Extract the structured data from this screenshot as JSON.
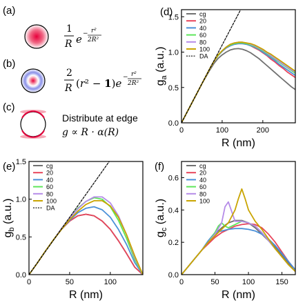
{
  "panels": {
    "a": {
      "label": "(a)"
    },
    "b": {
      "label": "(b)"
    },
    "c": {
      "label": "(c)",
      "text1": "Distribute at edge",
      "text2": "g ∝ R · α(R)"
    }
  },
  "colors": {
    "cg": "#707070",
    "20": "#e8455b",
    "40": "#4a90d9",
    "60": "#5ee65a",
    "80": "#b58be8",
    "100": "#c9a400",
    "DA": "#000000"
  },
  "chart_data": [
    {
      "panel": "(d)",
      "type": "line",
      "xlabel": "R (nm)",
      "ylabel": "g_a (a.u.)",
      "xlim": [
        0,
        280
      ],
      "ylim": [
        0,
        1.6
      ],
      "xticks": [
        0,
        100,
        200
      ],
      "yticks": [
        0.0,
        0.5,
        1.0,
        1.5
      ],
      "legend_position": "top-left",
      "series": [
        {
          "name": "cg",
          "x": [
            0,
            10,
            20,
            30,
            40,
            50,
            60,
            70,
            80,
            90,
            100,
            110,
            120,
            130,
            140,
            150,
            160,
            170,
            180,
            190,
            200,
            210,
            220,
            230,
            240,
            250,
            260,
            270,
            280
          ],
          "y": [
            0,
            0.11,
            0.22,
            0.33,
            0.44,
            0.55,
            0.65,
            0.75,
            0.84,
            0.91,
            0.96,
            1.0,
            1.03,
            1.045,
            1.05,
            1.04,
            1.02,
            0.99,
            0.95,
            0.91,
            0.86,
            0.81,
            0.76,
            0.71,
            0.66,
            0.61,
            0.56,
            0.51,
            0.47
          ]
        },
        {
          "name": "20",
          "x": [
            0,
            10,
            20,
            30,
            40,
            50,
            60,
            70,
            80,
            90,
            100,
            110,
            120,
            130,
            140,
            150,
            160,
            170,
            180,
            190,
            200,
            210,
            220,
            230,
            240,
            250,
            260,
            270,
            280
          ],
          "y": [
            0,
            0.11,
            0.22,
            0.33,
            0.44,
            0.55,
            0.66,
            0.77,
            0.87,
            0.95,
            1.01,
            1.06,
            1.09,
            1.11,
            1.12,
            1.12,
            1.11,
            1.09,
            1.06,
            1.03,
            0.99,
            0.95,
            0.9,
            0.86,
            0.81,
            0.77,
            0.72,
            0.68,
            0.64
          ]
        },
        {
          "name": "40",
          "x": [
            0,
            10,
            20,
            30,
            40,
            50,
            60,
            70,
            80,
            90,
            100,
            110,
            120,
            130,
            140,
            150,
            160,
            170,
            180,
            190,
            200,
            210,
            220,
            230,
            240,
            250,
            260,
            270,
            280
          ],
          "y": [
            0,
            0.11,
            0.22,
            0.33,
            0.44,
            0.55,
            0.66,
            0.77,
            0.87,
            0.95,
            1.01,
            1.06,
            1.09,
            1.11,
            1.12,
            1.12,
            1.11,
            1.09,
            1.07,
            1.04,
            1.0,
            0.96,
            0.92,
            0.88,
            0.83,
            0.79,
            0.75,
            0.71,
            0.67
          ]
        },
        {
          "name": "60",
          "x": [
            0,
            10,
            20,
            30,
            40,
            50,
            60,
            70,
            80,
            90,
            100,
            110,
            120,
            130,
            140,
            150,
            160,
            170,
            180,
            190,
            200,
            210,
            220,
            230,
            240,
            250,
            260,
            270,
            280
          ],
          "y": [
            0,
            0.11,
            0.22,
            0.33,
            0.44,
            0.55,
            0.66,
            0.77,
            0.87,
            0.95,
            1.02,
            1.07,
            1.1,
            1.12,
            1.13,
            1.13,
            1.12,
            1.1,
            1.08,
            1.05,
            1.02,
            0.98,
            0.94,
            0.9,
            0.86,
            0.82,
            0.78,
            0.74,
            0.7
          ]
        },
        {
          "name": "80",
          "x": [
            0,
            10,
            20,
            30,
            40,
            50,
            60,
            70,
            80,
            90,
            100,
            110,
            120,
            130,
            140,
            150,
            160,
            170,
            180,
            190,
            200,
            210,
            220,
            230,
            240,
            250,
            260,
            270,
            280
          ],
          "y": [
            0,
            0.11,
            0.22,
            0.33,
            0.44,
            0.55,
            0.66,
            0.77,
            0.87,
            0.96,
            1.02,
            1.07,
            1.11,
            1.13,
            1.14,
            1.14,
            1.13,
            1.11,
            1.09,
            1.06,
            1.03,
            0.99,
            0.95,
            0.91,
            0.87,
            0.83,
            0.79,
            0.75,
            0.72
          ]
        },
        {
          "name": "100",
          "x": [
            0,
            10,
            20,
            30,
            40,
            50,
            60,
            70,
            80,
            90,
            100,
            110,
            120,
            130,
            140,
            150,
            160,
            170,
            180,
            190,
            200,
            210,
            220,
            230,
            240,
            250,
            260,
            270,
            280
          ],
          "y": [
            0,
            0.11,
            0.22,
            0.33,
            0.44,
            0.55,
            0.66,
            0.77,
            0.87,
            0.96,
            1.02,
            1.07,
            1.11,
            1.13,
            1.14,
            1.14,
            1.13,
            1.12,
            1.1,
            1.07,
            1.04,
            1.0,
            0.97,
            0.93,
            0.89,
            0.85,
            0.81,
            0.77,
            0.73
          ]
        },
        {
          "name": "DA",
          "dashed": true,
          "x": [
            0,
            150
          ],
          "y": [
            0,
            1.65
          ]
        }
      ]
    },
    {
      "panel": "(e)",
      "type": "line",
      "xlabel": "R (nm)",
      "ylabel": "g_b (a.u.)",
      "xlim": [
        0,
        140
      ],
      "ylim": [
        0,
        1.5
      ],
      "xticks": [
        0,
        50,
        100
      ],
      "yticks": [
        0.0,
        0.5,
        1.0,
        1.5
      ],
      "legend_position": "top-left",
      "series": [
        {
          "name": "cg",
          "x": [
            0,
            10,
            20,
            30,
            40,
            50,
            60,
            70,
            80,
            90,
            100,
            110,
            120,
            130,
            140
          ],
          "y": [
            0,
            0.15,
            0.31,
            0.46,
            0.6,
            0.71,
            0.78,
            0.8,
            0.78,
            0.71,
            0.6,
            0.45,
            0.28,
            0.1,
            0
          ]
        },
        {
          "name": "20",
          "x": [
            0,
            10,
            20,
            30,
            40,
            50,
            60,
            70,
            80,
            90,
            100,
            110,
            120,
            130,
            140
          ],
          "y": [
            0,
            0.15,
            0.31,
            0.46,
            0.6,
            0.71,
            0.78,
            0.8,
            0.78,
            0.71,
            0.6,
            0.45,
            0.28,
            0.1,
            0
          ]
        },
        {
          "name": "40",
          "x": [
            0,
            10,
            20,
            30,
            40,
            50,
            60,
            70,
            80,
            90,
            100,
            110,
            120,
            130,
            140
          ],
          "y": [
            0,
            0.15,
            0.31,
            0.46,
            0.6,
            0.72,
            0.82,
            0.88,
            0.9,
            0.86,
            0.76,
            0.6,
            0.4,
            0.16,
            0
          ]
        },
        {
          "name": "60",
          "x": [
            0,
            10,
            20,
            30,
            40,
            50,
            60,
            70,
            80,
            90,
            100,
            110,
            120,
            130,
            140
          ],
          "y": [
            0,
            0.15,
            0.31,
            0.46,
            0.61,
            0.75,
            0.88,
            0.97,
            1.02,
            1.0,
            0.9,
            0.72,
            0.48,
            0.2,
            0
          ]
        },
        {
          "name": "80",
          "x": [
            0,
            10,
            20,
            30,
            40,
            50,
            60,
            70,
            80,
            90,
            100,
            110,
            120,
            130,
            140
          ],
          "y": [
            0,
            0.15,
            0.31,
            0.46,
            0.61,
            0.75,
            0.87,
            0.97,
            1.03,
            1.03,
            0.95,
            0.78,
            0.53,
            0.23,
            0
          ]
        },
        {
          "name": "100",
          "x": [
            0,
            10,
            20,
            30,
            40,
            50,
            60,
            70,
            80,
            90,
            100,
            110,
            120,
            130,
            140
          ],
          "y": [
            0,
            0.15,
            0.31,
            0.46,
            0.6,
            0.73,
            0.84,
            0.93,
            0.98,
            0.98,
            0.91,
            0.76,
            0.53,
            0.25,
            0
          ]
        },
        {
          "name": "DA",
          "dashed": true,
          "x": [
            0,
            100
          ],
          "y": [
            0,
            1.52
          ]
        }
      ]
    },
    {
      "panel": "(f)",
      "type": "line",
      "xlabel": "R (nm)",
      "ylabel": "g_c (a.u.)",
      "xlim": [
        0,
        170
      ],
      "ylim": [
        0,
        0.7
      ],
      "xticks": [
        0,
        50,
        100,
        150
      ],
      "yticks": [
        0.0,
        0.2,
        0.4,
        0.6
      ],
      "legend_position": "top-left",
      "series": [
        {
          "name": "cg",
          "x": [
            0,
            10,
            20,
            30,
            40,
            50,
            60,
            70,
            80,
            90,
            100,
            110,
            120,
            130,
            140,
            150,
            160,
            170
          ],
          "y": [
            0,
            0.05,
            0.1,
            0.15,
            0.2,
            0.25,
            0.29,
            0.32,
            0.335,
            0.335,
            0.32,
            0.29,
            0.25,
            0.21,
            0.17,
            0.12,
            0.07,
            0.03
          ]
        },
        {
          "name": "20",
          "x": [
            0,
            10,
            20,
            30,
            40,
            50,
            60,
            70,
            80,
            90,
            100,
            110,
            120,
            130,
            140,
            150,
            160,
            170
          ],
          "y": [
            0,
            0.05,
            0.1,
            0.15,
            0.19,
            0.23,
            0.26,
            0.28,
            0.3,
            0.31,
            0.315,
            0.31,
            0.29,
            0.25,
            0.2,
            0.14,
            0.08,
            0.03
          ]
        },
        {
          "name": "40",
          "x": [
            0,
            10,
            20,
            30,
            40,
            50,
            60,
            70,
            80,
            90,
            100,
            110,
            120,
            130,
            140,
            150,
            160,
            170
          ],
          "y": [
            0,
            0.05,
            0.1,
            0.15,
            0.21,
            0.26,
            0.27,
            0.28,
            0.285,
            0.285,
            0.28,
            0.27,
            0.25,
            0.22,
            0.18,
            0.13,
            0.08,
            0.03
          ]
        },
        {
          "name": "60",
          "x": [
            0,
            10,
            20,
            30,
            40,
            50,
            55,
            60,
            65,
            70,
            80,
            90,
            100,
            110,
            120,
            130,
            140,
            150,
            160,
            170
          ],
          "y": [
            0,
            0.05,
            0.1,
            0.15,
            0.2,
            0.26,
            0.3,
            0.32,
            0.3,
            0.29,
            0.31,
            0.33,
            0.32,
            0.3,
            0.26,
            0.21,
            0.16,
            0.11,
            0.06,
            0.02
          ]
        },
        {
          "name": "80",
          "x": [
            0,
            10,
            20,
            30,
            40,
            50,
            60,
            65,
            70,
            75,
            80,
            90,
            100,
            110,
            120,
            130,
            140,
            150,
            160,
            170
          ],
          "y": [
            0,
            0.05,
            0.1,
            0.15,
            0.2,
            0.25,
            0.32,
            0.42,
            0.45,
            0.39,
            0.33,
            0.33,
            0.32,
            0.3,
            0.26,
            0.21,
            0.16,
            0.11,
            0.06,
            0.02
          ]
        },
        {
          "name": "100",
          "x": [
            0,
            10,
            20,
            30,
            40,
            50,
            60,
            70,
            80,
            85,
            90,
            95,
            100,
            110,
            120,
            130,
            140,
            150,
            160,
            170
          ],
          "y": [
            0,
            0.05,
            0.1,
            0.15,
            0.2,
            0.24,
            0.28,
            0.32,
            0.4,
            0.47,
            0.53,
            0.47,
            0.4,
            0.33,
            0.28,
            0.22,
            0.16,
            0.11,
            0.06,
            0.02
          ]
        }
      ]
    }
  ]
}
